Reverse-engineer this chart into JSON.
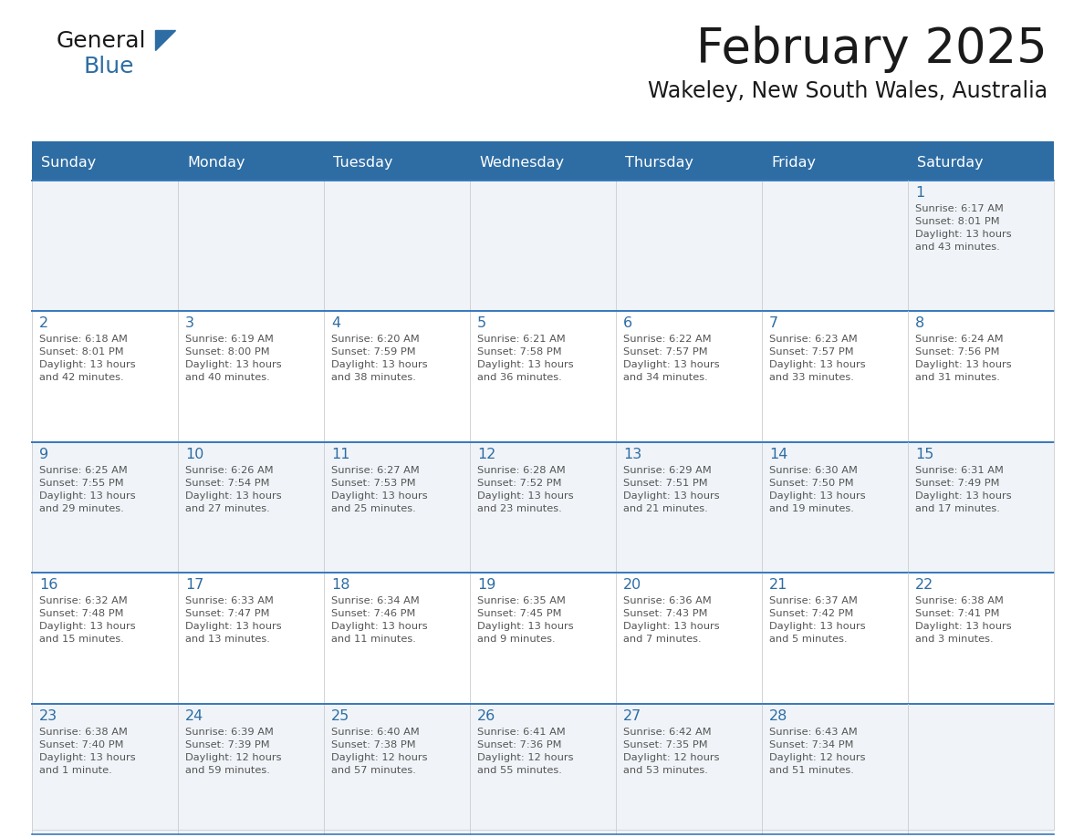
{
  "title": "February 2025",
  "subtitle": "Wakeley, New South Wales, Australia",
  "days_of_week": [
    "Sunday",
    "Monday",
    "Tuesday",
    "Wednesday",
    "Thursday",
    "Friday",
    "Saturday"
  ],
  "header_bg": "#2E6DA4",
  "header_text": "#FFFFFF",
  "cell_bg_light": "#F0F4F8",
  "cell_bg_white": "#FFFFFF",
  "border_color": "#3A7ABF",
  "grid_color": "#CCCCCC",
  "day_num_color": "#2E6DA4",
  "text_color": "#555555",
  "title_color": "#1A1A1A",
  "logo_general_color": "#1A1A1A",
  "logo_blue_color": "#2E6DA4",
  "weeks": [
    [
      {
        "day": null,
        "info": null
      },
      {
        "day": null,
        "info": null
      },
      {
        "day": null,
        "info": null
      },
      {
        "day": null,
        "info": null
      },
      {
        "day": null,
        "info": null
      },
      {
        "day": null,
        "info": null
      },
      {
        "day": 1,
        "info": "Sunrise: 6:17 AM\nSunset: 8:01 PM\nDaylight: 13 hours\nand 43 minutes."
      }
    ],
    [
      {
        "day": 2,
        "info": "Sunrise: 6:18 AM\nSunset: 8:01 PM\nDaylight: 13 hours\nand 42 minutes."
      },
      {
        "day": 3,
        "info": "Sunrise: 6:19 AM\nSunset: 8:00 PM\nDaylight: 13 hours\nand 40 minutes."
      },
      {
        "day": 4,
        "info": "Sunrise: 6:20 AM\nSunset: 7:59 PM\nDaylight: 13 hours\nand 38 minutes."
      },
      {
        "day": 5,
        "info": "Sunrise: 6:21 AM\nSunset: 7:58 PM\nDaylight: 13 hours\nand 36 minutes."
      },
      {
        "day": 6,
        "info": "Sunrise: 6:22 AM\nSunset: 7:57 PM\nDaylight: 13 hours\nand 34 minutes."
      },
      {
        "day": 7,
        "info": "Sunrise: 6:23 AM\nSunset: 7:57 PM\nDaylight: 13 hours\nand 33 minutes."
      },
      {
        "day": 8,
        "info": "Sunrise: 6:24 AM\nSunset: 7:56 PM\nDaylight: 13 hours\nand 31 minutes."
      }
    ],
    [
      {
        "day": 9,
        "info": "Sunrise: 6:25 AM\nSunset: 7:55 PM\nDaylight: 13 hours\nand 29 minutes."
      },
      {
        "day": 10,
        "info": "Sunrise: 6:26 AM\nSunset: 7:54 PM\nDaylight: 13 hours\nand 27 minutes."
      },
      {
        "day": 11,
        "info": "Sunrise: 6:27 AM\nSunset: 7:53 PM\nDaylight: 13 hours\nand 25 minutes."
      },
      {
        "day": 12,
        "info": "Sunrise: 6:28 AM\nSunset: 7:52 PM\nDaylight: 13 hours\nand 23 minutes."
      },
      {
        "day": 13,
        "info": "Sunrise: 6:29 AM\nSunset: 7:51 PM\nDaylight: 13 hours\nand 21 minutes."
      },
      {
        "day": 14,
        "info": "Sunrise: 6:30 AM\nSunset: 7:50 PM\nDaylight: 13 hours\nand 19 minutes."
      },
      {
        "day": 15,
        "info": "Sunrise: 6:31 AM\nSunset: 7:49 PM\nDaylight: 13 hours\nand 17 minutes."
      }
    ],
    [
      {
        "day": 16,
        "info": "Sunrise: 6:32 AM\nSunset: 7:48 PM\nDaylight: 13 hours\nand 15 minutes."
      },
      {
        "day": 17,
        "info": "Sunrise: 6:33 AM\nSunset: 7:47 PM\nDaylight: 13 hours\nand 13 minutes."
      },
      {
        "day": 18,
        "info": "Sunrise: 6:34 AM\nSunset: 7:46 PM\nDaylight: 13 hours\nand 11 minutes."
      },
      {
        "day": 19,
        "info": "Sunrise: 6:35 AM\nSunset: 7:45 PM\nDaylight: 13 hours\nand 9 minutes."
      },
      {
        "day": 20,
        "info": "Sunrise: 6:36 AM\nSunset: 7:43 PM\nDaylight: 13 hours\nand 7 minutes."
      },
      {
        "day": 21,
        "info": "Sunrise: 6:37 AM\nSunset: 7:42 PM\nDaylight: 13 hours\nand 5 minutes."
      },
      {
        "day": 22,
        "info": "Sunrise: 6:38 AM\nSunset: 7:41 PM\nDaylight: 13 hours\nand 3 minutes."
      }
    ],
    [
      {
        "day": 23,
        "info": "Sunrise: 6:38 AM\nSunset: 7:40 PM\nDaylight: 13 hours\nand 1 minute."
      },
      {
        "day": 24,
        "info": "Sunrise: 6:39 AM\nSunset: 7:39 PM\nDaylight: 12 hours\nand 59 minutes."
      },
      {
        "day": 25,
        "info": "Sunrise: 6:40 AM\nSunset: 7:38 PM\nDaylight: 12 hours\nand 57 minutes."
      },
      {
        "day": 26,
        "info": "Sunrise: 6:41 AM\nSunset: 7:36 PM\nDaylight: 12 hours\nand 55 minutes."
      },
      {
        "day": 27,
        "info": "Sunrise: 6:42 AM\nSunset: 7:35 PM\nDaylight: 12 hours\nand 53 minutes."
      },
      {
        "day": 28,
        "info": "Sunrise: 6:43 AM\nSunset: 7:34 PM\nDaylight: 12 hours\nand 51 minutes."
      },
      {
        "day": null,
        "info": null
      }
    ]
  ]
}
